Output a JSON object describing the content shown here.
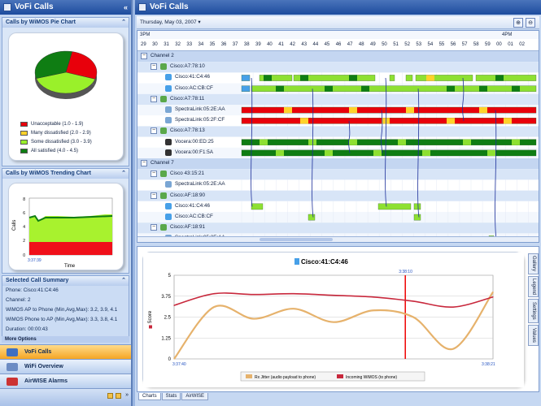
{
  "left_title": "VoFi Calls",
  "right_title": "VoFi Calls",
  "pie": {
    "title": "Calls by WiMOS Pie Chart",
    "legend": [
      {
        "label": "Unacceptable (1.0 - 1.9)",
        "color": "#e8000b"
      },
      {
        "label": "Many dissatisfied (2.0 - 2.9)",
        "color": "#ffd22b"
      },
      {
        "label": "Some dissatisfied (3.0 - 3.9)",
        "color": "#9af02a"
      },
      {
        "label": "All satisfied (4.0 - 4.5)",
        "color": "#0f7d13"
      }
    ],
    "slices": [
      {
        "value": 27,
        "color": "#e8000b"
      },
      {
        "value": 40,
        "color": "#9af02a"
      },
      {
        "value": 33,
        "color": "#0f7d13"
      }
    ]
  },
  "trend": {
    "title": "Calls by WiMOS Trending Chart",
    "ylabel": "Calls",
    "xlabel": "Time",
    "time": "3:37:39",
    "yticks": [
      "8",
      "6",
      "4",
      "2",
      "0"
    ]
  },
  "summary": {
    "title": "Selected Call Summary",
    "lines": [
      "Phone: Cisco:41:C4:46",
      "Channel: 2",
      "WiMOS AP to Phone (Min,Avg,Max): 3.2, 3.9, 4.1",
      "WiMOS Phone to AP (Min,Avg,Max): 3.3, 3.8, 4.1",
      "Duration: 00:00:43"
    ],
    "more": "More Options"
  },
  "nav": [
    {
      "label": "VoFi Calls",
      "active": true,
      "color": "#3f6fc0"
    },
    {
      "label": "WiFi Overview",
      "active": false,
      "color": "#6c8cc4"
    },
    {
      "label": "AirWISE Alarms",
      "active": false,
      "color": "#c33"
    }
  ],
  "toolbar": {
    "date": "Thursday, May 03, 2007"
  },
  "timeline": {
    "hour_left": "3PM",
    "hour_right": "4PM",
    "minutes": [
      "29",
      "30",
      "31",
      "32",
      "33",
      "34",
      "35",
      "36",
      "37",
      "38",
      "39",
      "40",
      "41",
      "42",
      "43",
      "44",
      "45",
      "46",
      "47",
      "48",
      "49",
      "50",
      "51",
      "52",
      "53",
      "54",
      "55",
      "56",
      "57",
      "58",
      "59",
      "00",
      "01",
      "02"
    ]
  },
  "rows": [
    {
      "type": "channel",
      "label": "Channel 2"
    },
    {
      "type": "ap",
      "label": "Cisco:A7:78:10"
    },
    {
      "type": "phone",
      "label": "Cisco:41:C4:46",
      "color": "#47a0e8"
    },
    {
      "type": "phone",
      "label": "Cisco:AC:CB:CF",
      "color": "#47a0e8"
    },
    {
      "type": "ap",
      "label": "Cisco:A7:78:11"
    },
    {
      "type": "phone",
      "label": "SpectraLink:05:2E:AA",
      "color": "#7aa6d4"
    },
    {
      "type": "phone",
      "label": "SpectraLink:05:2F:CF",
      "color": "#7aa6d4"
    },
    {
      "type": "ap",
      "label": "Cisco:A7:78:13"
    },
    {
      "type": "phone",
      "label": "Vocera:00:ED:25",
      "color": "#333"
    },
    {
      "type": "phone",
      "label": "Vocera:00:F1:5A",
      "color": "#333"
    },
    {
      "type": "channel",
      "label": "Channel 7"
    },
    {
      "type": "ap",
      "label": "Cisco 43:15:21"
    },
    {
      "type": "phone",
      "label": "SpectraLink:05:2E:AA",
      "color": "#7aa6d4"
    },
    {
      "type": "ap",
      "label": "Cisco:AF:18:90"
    },
    {
      "type": "phone",
      "label": "Cisco:41:C4:46",
      "color": "#47a0e8"
    },
    {
      "type": "phone",
      "label": "Cisco:AC:CB:CF",
      "color": "#47a0e8"
    },
    {
      "type": "ap",
      "label": "Cisco:AF:18:91"
    },
    {
      "type": "phone",
      "label": "SpectraLink:05:2E:AA",
      "color": "#7aa6d4"
    }
  ],
  "detail": {
    "title": "Cisco:41:C4:46",
    "ylabel": "Score",
    "t_left": "3:37:40",
    "t_mid": "3:38:10",
    "t_right": "3:38:21",
    "yticks": [
      "5",
      "3.75",
      "2.5",
      "1.25",
      "0"
    ],
    "legend": [
      {
        "label": "Rx Jitter (audio payload to phone)",
        "color": "#e6b26c"
      },
      {
        "label": "Incoming WiMOS (to phone)",
        "color": "#c8283c"
      }
    ]
  },
  "chart_data": {
    "type": "line",
    "title": "Cisco:41:C4:46",
    "xlabel": "",
    "ylabel": "Score",
    "ylim": [
      0,
      5
    ],
    "x": [
      "3:37:40",
      "3:37:45",
      "3:37:50",
      "3:37:55",
      "3:38:00",
      "3:38:05",
      "3:38:10",
      "3:38:15",
      "3:38:21"
    ],
    "series": [
      {
        "name": "Rx Jitter (audio payload to phone)",
        "values": [
          0.0,
          3.1,
          2.4,
          3.0,
          2.2,
          2.9,
          2.5,
          0.6,
          4.0
        ]
      },
      {
        "name": "Incoming WiMOS (to phone)",
        "values": [
          3.2,
          3.9,
          3.85,
          3.9,
          3.8,
          3.7,
          3.45,
          3.1,
          3.7
        ]
      }
    ]
  },
  "bottom_tabs": [
    "Charts",
    "Stats",
    "AirWISE"
  ],
  "side_tabs": [
    "Gallery",
    "Legend",
    "Settings",
    "Values"
  ]
}
